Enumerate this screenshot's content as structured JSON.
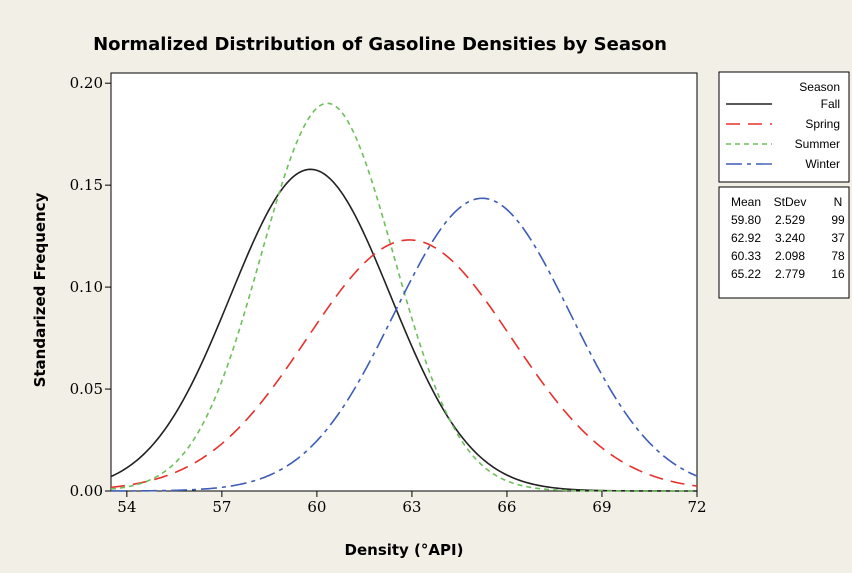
{
  "chart_data": {
    "type": "line",
    "title": "Normalized Distribution of Gasoline Densities by Season",
    "xlabel": "Density (°API)",
    "ylabel": "Standarized Frequency",
    "xlim": [
      53.5,
      72
    ],
    "ylim": [
      0,
      0.205
    ],
    "xticks": [
      54,
      57,
      60,
      63,
      66,
      69,
      72
    ],
    "yticks": [
      0,
      0.05,
      0.1,
      0.15,
      0.2
    ],
    "ytick_labels": [
      "0.00",
      "0.05",
      "0.10",
      "0.15",
      "0.20"
    ],
    "legend_title": "Season",
    "series": [
      {
        "name": "Fall",
        "mean": 59.8,
        "stdev": 2.529,
        "n": 99,
        "color": "#222222",
        "dash": ""
      },
      {
        "name": "Spring",
        "mean": 62.92,
        "stdev": 3.24,
        "n": 37,
        "color": "#e8302a",
        "dash": "14,8"
      },
      {
        "name": "Summer",
        "mean": 60.33,
        "stdev": 2.098,
        "n": 78,
        "color": "#6dbf5a",
        "dash": "5,4"
      },
      {
        "name": "Winter",
        "mean": 65.22,
        "stdev": 2.779,
        "n": 16,
        "color": "#3d5db6",
        "dash": "16,5,4,5"
      }
    ],
    "stats_table": {
      "headers": [
        "Mean",
        "StDev",
        "N"
      ],
      "rows": [
        [
          "59.80",
          "2.529",
          "99"
        ],
        [
          "62.92",
          "3.240",
          "37"
        ],
        [
          "60.33",
          "2.098",
          "78"
        ],
        [
          "65.22",
          "2.779",
          "16"
        ]
      ]
    }
  }
}
